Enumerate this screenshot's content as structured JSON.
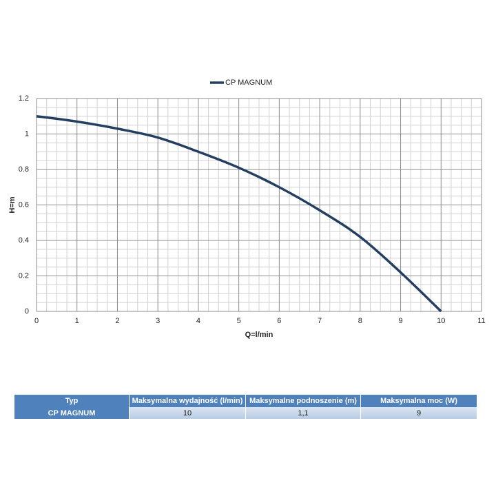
{
  "chart_data": {
    "type": "line",
    "x": [
      0,
      1,
      2,
      3,
      4,
      5,
      6,
      7,
      8,
      9,
      10
    ],
    "series": [
      {
        "name": "CP MAGNUM",
        "color": "#243f60",
        "values": [
          1.1,
          1.07,
          1.03,
          0.98,
          0.9,
          0.81,
          0.7,
          0.57,
          0.42,
          0.22,
          0
        ]
      }
    ],
    "xlabel": "Q=l/min",
    "ylabel": "H=m",
    "xlim": [
      0,
      11
    ],
    "xticks": [
      0,
      1,
      2,
      3,
      4,
      5,
      6,
      7,
      8,
      9,
      10,
      11
    ],
    "ylim": [
      0,
      1.2
    ],
    "yticks": [
      0,
      0.2,
      0.4,
      0.6,
      0.8,
      1,
      1.2
    ],
    "grid": true,
    "legend": "top"
  },
  "table": {
    "header": [
      "Typ",
      "Maksymalna wydajność (l/min)",
      "Maksymalne podnoszenie (m)",
      "Maksymalna moc (W)"
    ],
    "rows": [
      [
        "CP MAGNUM",
        "10",
        "1,1",
        "9"
      ]
    ]
  }
}
